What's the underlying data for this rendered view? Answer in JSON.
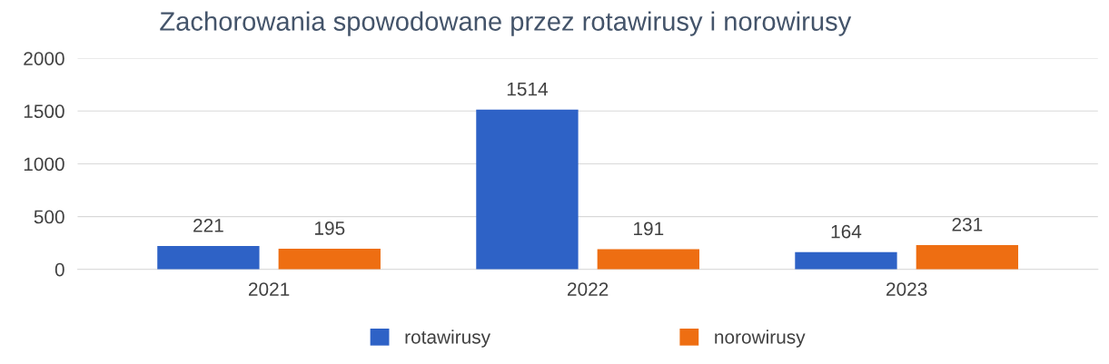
{
  "chart_data": {
    "type": "bar",
    "title": "Zachorowania spowodowane przez rotawirusy i norowirusy",
    "categories": [
      "2021",
      "2022",
      "2023"
    ],
    "series": [
      {
        "name": "rotawirusy",
        "color": "#2e62c6",
        "values": [
          221,
          1514,
          164
        ]
      },
      {
        "name": "norowirusy",
        "color": "#ee6e12",
        "values": [
          195,
          191,
          231
        ]
      }
    ],
    "ylim": [
      0,
      2000
    ],
    "yticks": [
      0,
      500,
      1000,
      1500,
      2000
    ],
    "grid": "y",
    "legend": "bottom",
    "data_labels": true
  }
}
